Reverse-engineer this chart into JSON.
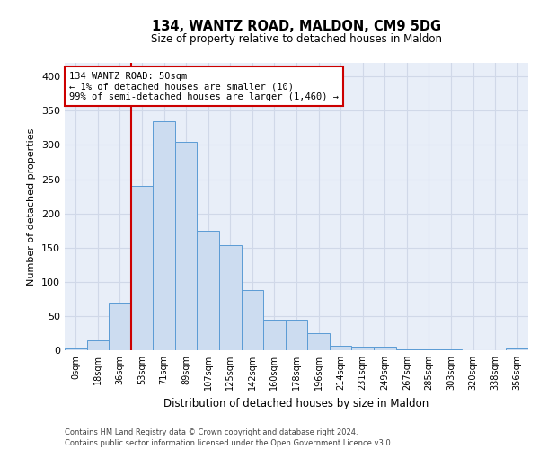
{
  "title": "134, WANTZ ROAD, MALDON, CM9 5DG",
  "subtitle": "Size of property relative to detached houses in Maldon",
  "xlabel": "Distribution of detached houses by size in Maldon",
  "ylabel": "Number of detached properties",
  "bar_labels": [
    "0sqm",
    "18sqm",
    "36sqm",
    "53sqm",
    "71sqm",
    "89sqm",
    "107sqm",
    "125sqm",
    "142sqm",
    "160sqm",
    "178sqm",
    "196sqm",
    "214sqm",
    "231sqm",
    "249sqm",
    "267sqm",
    "285sqm",
    "303sqm",
    "320sqm",
    "338sqm",
    "356sqm"
  ],
  "bar_heights": [
    2,
    14,
    70,
    240,
    335,
    305,
    174,
    154,
    88,
    45,
    45,
    25,
    7,
    5,
    5,
    1,
    1,
    1,
    0,
    0,
    2
  ],
  "bar_color": "#ccdcf0",
  "bar_edge_color": "#5b9bd5",
  "marker_line_color": "#cc0000",
  "annotation_text": "134 WANTZ ROAD: 50sqm\n← 1% of detached houses are smaller (10)\n99% of semi-detached houses are larger (1,460) →",
  "annotation_box_color": "#ffffff",
  "annotation_box_edge": "#cc0000",
  "ylim": [
    0,
    420
  ],
  "yticks": [
    0,
    50,
    100,
    150,
    200,
    250,
    300,
    350,
    400
  ],
  "grid_color": "#d0d8e8",
  "background_color": "#e8eef8",
  "footer1": "Contains HM Land Registry data © Crown copyright and database right 2024.",
  "footer2": "Contains public sector information licensed under the Open Government Licence v3.0."
}
